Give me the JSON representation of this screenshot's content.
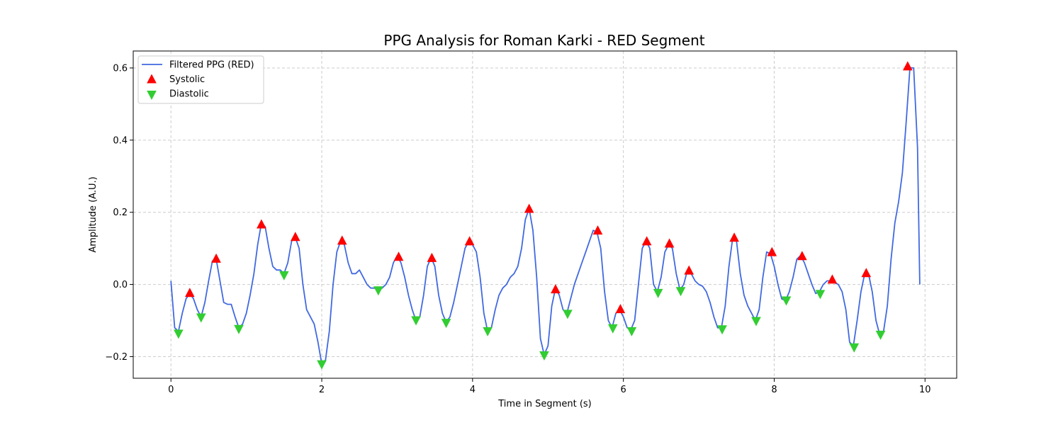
{
  "chart_data": {
    "type": "line",
    "title": "PPG Analysis for Roman Karki - RED Segment",
    "xlabel": "Time in Segment (s)",
    "ylabel": "Amplitude (A.U.)",
    "xlim": [
      -0.5,
      10.42
    ],
    "ylim": [
      -0.26,
      0.647
    ],
    "xticks": [
      0,
      2,
      4,
      6,
      8,
      10
    ],
    "yticks": [
      -0.2,
      0.0,
      0.2,
      0.4,
      0.6
    ],
    "xtick_labels": [
      "0",
      "2",
      "4",
      "6",
      "8",
      "10"
    ],
    "ytick_labels": [
      "−0.2",
      "0.0",
      "0.2",
      "0.4",
      "0.6"
    ],
    "grid": true,
    "legend_position": "top-left",
    "colors": {
      "line": "#4169e1",
      "systolic": "#ff0000",
      "diastolic": "#32cd32",
      "grid": "#cccccc"
    },
    "series": [
      {
        "name": "Filtered PPG (RED)",
        "kind": "line",
        "x": [
          0.0,
          0.05,
          0.1,
          0.15,
          0.2,
          0.25,
          0.3,
          0.35,
          0.4,
          0.45,
          0.5,
          0.55,
          0.6,
          0.65,
          0.7,
          0.75,
          0.8,
          0.85,
          0.9,
          0.95,
          1.0,
          1.05,
          1.1,
          1.15,
          1.2,
          1.25,
          1.3,
          1.35,
          1.4,
          1.45,
          1.5,
          1.55,
          1.6,
          1.65,
          1.7,
          1.75,
          1.8,
          1.85,
          1.9,
          1.95,
          2.0,
          2.05,
          2.1,
          2.15,
          2.2,
          2.25,
          2.3,
          2.35,
          2.4,
          2.45,
          2.5,
          2.55,
          2.6,
          2.65,
          2.7,
          2.75,
          2.8,
          2.85,
          2.9,
          2.95,
          3.0,
          3.05,
          3.1,
          3.15,
          3.2,
          3.25,
          3.3,
          3.35,
          3.4,
          3.45,
          3.5,
          3.55,
          3.6,
          3.65,
          3.7,
          3.75,
          3.8,
          3.85,
          3.9,
          3.95,
          4.0,
          4.05,
          4.1,
          4.15,
          4.2,
          4.25,
          4.3,
          4.35,
          4.4,
          4.45,
          4.5,
          4.55,
          4.6,
          4.65,
          4.7,
          4.75,
          4.8,
          4.85,
          4.9,
          4.95,
          5.0,
          5.05,
          5.1,
          5.15,
          5.2,
          5.25,
          5.3,
          5.35,
          5.4,
          5.45,
          5.5,
          5.55,
          5.6,
          5.65,
          5.7,
          5.75,
          5.8,
          5.85,
          5.9,
          5.95,
          6.0,
          6.05,
          6.1,
          6.15,
          6.2,
          6.25,
          6.3,
          6.35,
          6.4,
          6.45,
          6.5,
          6.55,
          6.6,
          6.65,
          6.7,
          6.75,
          6.8,
          6.85,
          6.9,
          6.95,
          7.0,
          7.05,
          7.1,
          7.15,
          7.2,
          7.25,
          7.3,
          7.35,
          7.4,
          7.45,
          7.5,
          7.55,
          7.6,
          7.65,
          7.7,
          7.75,
          7.8,
          7.85,
          7.9,
          7.95,
          8.0,
          8.05,
          8.1,
          8.15,
          8.2,
          8.25,
          8.3,
          8.35,
          8.4,
          8.45,
          8.5,
          8.55,
          8.6,
          8.65,
          8.7,
          8.75,
          8.8,
          8.85,
          8.9,
          8.95,
          9.0,
          9.05,
          9.1,
          9.15,
          9.2,
          9.25,
          9.3,
          9.35,
          9.4,
          9.45,
          9.5,
          9.55,
          9.6,
          9.65,
          9.7,
          9.75,
          9.8,
          9.85,
          9.9,
          9.93
        ],
        "y": [
          0.01,
          -0.12,
          -0.13,
          -0.08,
          -0.04,
          -0.025,
          -0.04,
          -0.07,
          -0.09,
          -0.05,
          0.01,
          0.065,
          0.07,
          0.01,
          -0.05,
          -0.055,
          -0.055,
          -0.09,
          -0.12,
          -0.11,
          -0.08,
          -0.03,
          0.03,
          0.11,
          0.17,
          0.16,
          0.1,
          0.05,
          0.04,
          0.04,
          0.03,
          0.06,
          0.12,
          0.13,
          0.1,
          0.0,
          -0.07,
          -0.09,
          -0.11,
          -0.16,
          -0.22,
          -0.21,
          -0.13,
          0.0,
          0.09,
          0.12,
          0.11,
          0.06,
          0.03,
          0.03,
          0.04,
          0.02,
          0.0,
          -0.01,
          -0.01,
          -0.015,
          -0.01,
          0.0,
          0.02,
          0.06,
          0.08,
          0.06,
          0.02,
          -0.03,
          -0.07,
          -0.1,
          -0.09,
          -0.03,
          0.05,
          0.075,
          0.05,
          -0.03,
          -0.08,
          -0.105,
          -0.09,
          -0.05,
          0.0,
          0.05,
          0.1,
          0.12,
          0.11,
          0.09,
          0.02,
          -0.08,
          -0.13,
          -0.12,
          -0.07,
          -0.03,
          -0.01,
          0.0,
          0.02,
          0.03,
          0.05,
          0.1,
          0.18,
          0.21,
          0.15,
          0.02,
          -0.15,
          -0.195,
          -0.17,
          -0.06,
          -0.01,
          -0.03,
          -0.07,
          -0.08,
          -0.04,
          0.0,
          0.03,
          0.06,
          0.09,
          0.12,
          0.15,
          0.145,
          0.1,
          -0.02,
          -0.1,
          -0.12,
          -0.08,
          -0.07,
          -0.09,
          -0.12,
          -0.125,
          -0.1,
          0.0,
          0.1,
          0.12,
          0.1,
          0.0,
          -0.02,
          0.02,
          0.09,
          0.11,
          0.1,
          0.03,
          -0.015,
          0.0,
          0.04,
          0.03,
          0.01,
          0.0,
          -0.005,
          -0.02,
          -0.05,
          -0.09,
          -0.12,
          -0.12,
          -0.06,
          0.05,
          0.13,
          0.12,
          0.03,
          -0.03,
          -0.06,
          -0.08,
          -0.1,
          -0.07,
          0.02,
          0.09,
          0.085,
          0.05,
          0.0,
          -0.04,
          -0.045,
          -0.02,
          0.02,
          0.07,
          0.08,
          0.06,
          0.03,
          0.0,
          -0.025,
          -0.02,
          0.0,
          0.01,
          0.01,
          0.005,
          0.0,
          -0.02,
          -0.07,
          -0.16,
          -0.17,
          -0.1,
          -0.02,
          0.03,
          0.03,
          -0.02,
          -0.1,
          -0.14,
          -0.13,
          -0.06,
          0.07,
          0.17,
          0.23,
          0.31,
          0.45,
          0.6,
          0.6,
          0.38,
          0.0
        ]
      },
      {
        "name": "Systolic",
        "kind": "marker-up",
        "x": [
          0.25,
          0.6,
          1.2,
          1.65,
          2.27,
          3.02,
          3.46,
          3.96,
          4.75,
          5.1,
          5.66,
          5.96,
          6.31,
          6.61,
          6.87,
          7.47,
          7.97,
          8.37,
          8.77,
          9.22,
          9.77
        ],
        "y": [
          -0.025,
          0.07,
          0.165,
          0.13,
          0.12,
          0.075,
          0.072,
          0.118,
          0.208,
          -0.015,
          0.148,
          -0.07,
          0.118,
          0.112,
          0.037,
          0.128,
          0.088,
          0.077,
          0.012,
          0.03,
          0.603
        ]
      },
      {
        "name": "Diastolic",
        "kind": "marker-down",
        "x": [
          0.1,
          0.4,
          0.9,
          1.5,
          2.0,
          2.75,
          3.25,
          3.65,
          4.2,
          4.95,
          5.26,
          5.86,
          6.11,
          6.46,
          6.76,
          7.31,
          7.76,
          8.16,
          8.61,
          9.06,
          9.41
        ],
        "y": [
          -0.135,
          -0.09,
          -0.122,
          0.027,
          -0.22,
          -0.015,
          -0.098,
          -0.105,
          -0.128,
          -0.195,
          -0.08,
          -0.12,
          -0.128,
          -0.022,
          -0.017,
          -0.123,
          -0.1,
          -0.043,
          -0.025,
          -0.173,
          -0.138
        ]
      }
    ]
  }
}
